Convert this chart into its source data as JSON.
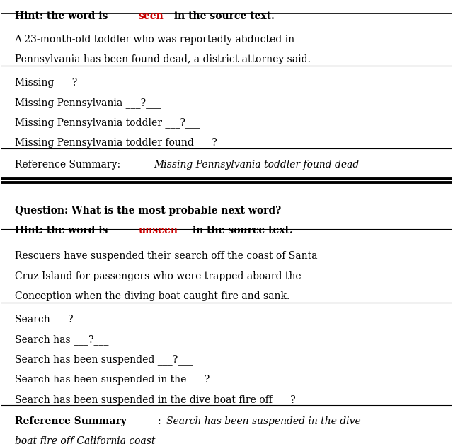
{
  "bg_color": "#ffffff",
  "fig_width": 6.4,
  "fig_height": 6.28,
  "top_hint_color": "#cc0000",
  "section1_article": "A 23-month-old toddler who was reportedly abducted in\nPennsylvania has been found dead, a district attorney said.",
  "section1_completions": [
    "Missing ___?___",
    "Missing Pennsylvania ___?___",
    "Missing Pennsylvania toddler ___?___",
    "Missing Pennsylvania toddler found ___?___"
  ],
  "section2_hint_color": "#cc0000",
  "section2_article": "Rescuers have suspended their search off the coast of Santa\nCruz Island for passengers who were trapped aboard the\nConception when the diving boat caught fire and sank.",
  "section2_completions": [
    "Search ___?___",
    "Search has ___?___",
    "Search has been suspended ___?___",
    "Search has been suspended in the ___?___",
    "Search has been suspended in the dive boat fire off ___?___"
  ]
}
